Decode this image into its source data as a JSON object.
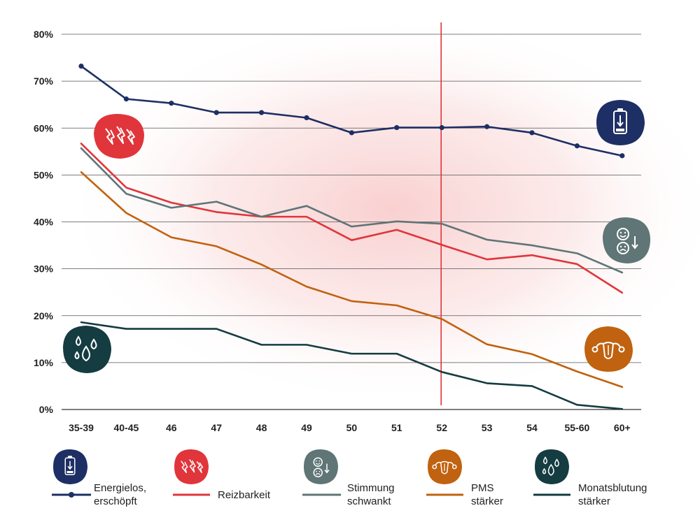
{
  "chart_data": {
    "type": "line",
    "title": "",
    "xlabel": "",
    "ylabel": "",
    "ylim": [
      0,
      80
    ],
    "y_ticks": [
      "0%",
      "10%",
      "20%",
      "30%",
      "40%",
      "50%",
      "60%",
      "70%",
      "80%"
    ],
    "categories": [
      "35-39",
      "40-45",
      "46",
      "47",
      "48",
      "49",
      "50",
      "51",
      "52",
      "53",
      "54",
      "55-60",
      "60+"
    ],
    "marker_category": "52",
    "series": [
      {
        "name": "Energielos, erschöpft",
        "color": "#1d2f64",
        "markers": true,
        "values": [
          73.2,
          66.2,
          65.3,
          63.3,
          63.3,
          62.2,
          59.0,
          60.1,
          60.1,
          60.3,
          59.0,
          56.2,
          54.1
        ]
      },
      {
        "name": "Reizbarkeit",
        "color": "#e0353b",
        "markers": false,
        "values": [
          56.7,
          47.3,
          44.1,
          42.1,
          41.1,
          41.1,
          36.1,
          38.3,
          35.1,
          32.0,
          32.9,
          31.0,
          24.9
        ]
      },
      {
        "name": "Stimmung schwankt",
        "color": "#5f7576",
        "markers": false,
        "values": [
          55.7,
          46.0,
          43.0,
          44.3,
          41.1,
          43.4,
          39.0,
          40.1,
          39.6,
          36.2,
          35.0,
          33.3,
          29.2
        ]
      },
      {
        "name": "PMS stärker",
        "color": "#c0620f",
        "markers": false,
        "values": [
          50.6,
          41.9,
          36.7,
          34.8,
          30.9,
          26.2,
          23.1,
          22.2,
          19.3,
          13.9,
          11.8,
          8.1,
          4.8
        ]
      },
      {
        "name": "Monatsblutung stärker",
        "color": "#143c41",
        "markers": false,
        "values": [
          18.6,
          17.2,
          17.2,
          17.2,
          13.8,
          13.8,
          11.9,
          11.9,
          8.0,
          5.6,
          5.0,
          1.0,
          0.1
        ]
      }
    ]
  },
  "legend": [
    {
      "label": "Energielos,\nerschöpft",
      "icon": "battery-low-icon",
      "color": "#1d2f64"
    },
    {
      "label": "Reizbarkeit",
      "icon": "lightning-icon",
      "color": "#e0353b"
    },
    {
      "label": "Stimmung\nschwankt",
      "icon": "mood-swing-icon",
      "color": "#5f7576"
    },
    {
      "label": "PMS\nstärker",
      "icon": "uterus-icon",
      "color": "#c0620f"
    },
    {
      "label": "Monatsblutung\nstärker",
      "icon": "drops-icon",
      "color": "#143c41"
    }
  ]
}
